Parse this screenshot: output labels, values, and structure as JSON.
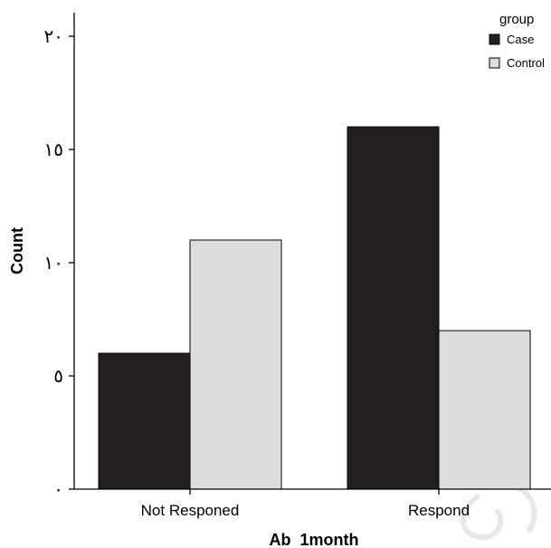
{
  "chart_data": {
    "type": "bar",
    "categories": [
      "Not Responed",
      "Respond"
    ],
    "series": [
      {
        "name": "Case",
        "color": "#231f20",
        "values": [
          6,
          16
        ]
      },
      {
        "name": "Control",
        "color": "#dcdddf",
        "values": [
          11,
          7
        ]
      }
    ],
    "xlabel": "Ab  1month",
    "ylabel": "Count",
    "ylim": [
      0,
      20
    ],
    "yticks": [
      0,
      5,
      10,
      15,
      20
    ],
    "ytick_labels": [
      "٠",
      "٥",
      "١٠",
      "١٥",
      "٢٠"
    ],
    "legend": {
      "title": "group",
      "placement": "top-right"
    },
    "grid": false
  }
}
